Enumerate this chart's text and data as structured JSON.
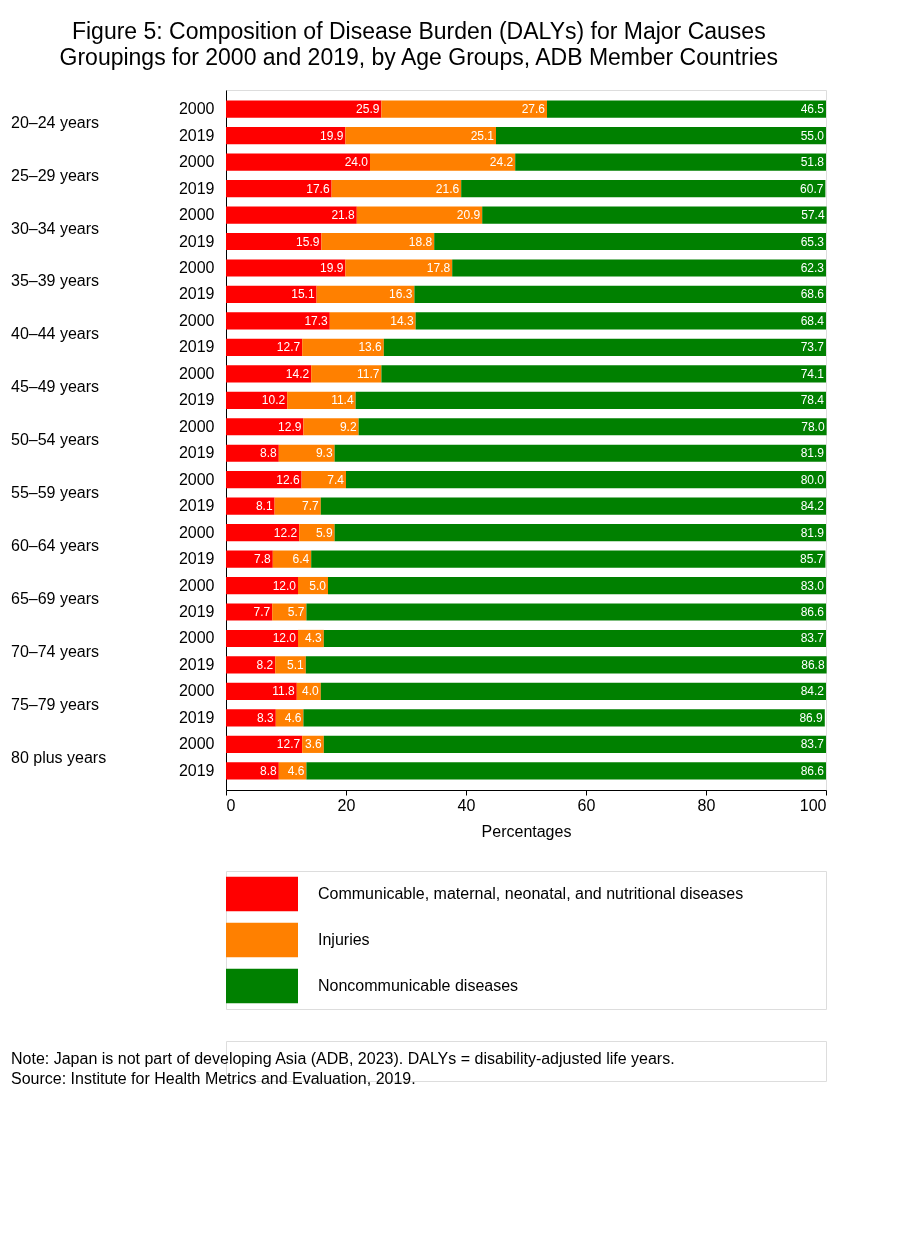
{
  "chart_data": {
    "type": "bar",
    "orientation": "horizontal",
    "stacked": true,
    "title": "Figure 5: Composition of Disease Burden (DALYs) for Major Causes Groupings for 2000 and 2019, by Age Groups, ADB Member Countries",
    "xlabel": "Percentages",
    "categories": [
      "2000",
      "2019",
      "2000",
      "2019",
      "2000",
      "2019",
      "2000",
      "2019",
      "2000",
      "2019",
      "2000",
      "2019",
      "2000",
      "2019",
      "2000",
      "2019",
      "2000",
      "2019",
      "2000",
      "2019",
      "2000",
      "2019",
      "2000",
      "2019",
      "2000",
      "2019"
    ],
    "series": [
      {
        "name": "Communicable, maternal, neonatal, and nutritional diseases",
        "color": "#ff0000",
        "values": [
          25.9,
          19.9,
          24.0,
          17.6,
          21.8,
          15.9,
          19.9,
          15.1,
          17.3,
          12.7,
          14.2,
          10.2,
          12.9,
          8.8,
          12.6,
          8.1,
          12.2,
          7.8,
          12.0,
          7.7,
          12.0,
          8.2,
          11.8,
          8.3,
          12.7,
          8.8
        ],
        "value_labels": [
          "25.9",
          "19.9",
          "24.0",
          "17.6",
          "21.8",
          "15.9",
          "19.9",
          "15.1",
          "17.3",
          "12.7",
          "14.2",
          "10.2",
          "12.9",
          "8.8",
          "12.6",
          "8.1",
          "12.2",
          "7.8",
          "12.0",
          "7.7",
          "12.0",
          "8.2",
          "11.8",
          "8.3",
          "12.7",
          "8.8"
        ]
      },
      {
        "name": "Injuries",
        "color": "#ff8000",
        "values": [
          27.6,
          25.1,
          24.2,
          21.6,
          20.9,
          18.8,
          17.8,
          16.3,
          14.3,
          13.6,
          11.7,
          11.4,
          9.2,
          9.3,
          7.4,
          7.7,
          5.9,
          6.4,
          5.0,
          5.7,
          4.3,
          5.1,
          4.0,
          4.6,
          3.6,
          4.6
        ],
        "value_labels": [
          "27.6",
          "25.1",
          "24.2",
          "21.6",
          "20.9",
          "18.8",
          "17.8",
          "16.3",
          "14.3",
          "13.6",
          "11.7",
          "11.4",
          "9.2",
          "9.3",
          "7.4",
          "7.7",
          "5.9",
          "6.4",
          "5.0",
          "5.7",
          "4.3",
          "5.1",
          "4.0",
          "4.6",
          "3.6",
          "4.6"
        ]
      },
      {
        "name": "Noncommunicable diseases",
        "color": "#008000",
        "values": [
          46.5,
          55.0,
          51.8,
          60.7,
          57.4,
          65.3,
          62.3,
          68.6,
          68.4,
          73.7,
          74.1,
          78.4,
          78.0,
          81.9,
          80.0,
          84.2,
          81.9,
          85.7,
          83.0,
          86.6,
          83.7,
          86.8,
          84.2,
          86.9,
          83.7,
          86.6
        ],
        "value_labels": [
          "46.5",
          "55.0",
          "51.8",
          "60.7",
          "57.4",
          "65.3",
          "62.3",
          "68.6",
          "68.4",
          "73.7",
          "74.1",
          "78.4",
          "78.0",
          "81.9",
          "80.0",
          "84.2",
          "81.9",
          "85.7",
          "83.0",
          "86.6",
          "83.7",
          "86.8",
          "84.2",
          "86.9",
          "83.7",
          "86.6"
        ]
      }
    ],
    "xlim": [
      0,
      100
    ],
    "xticks": [
      0,
      20,
      40,
      60,
      80,
      100
    ],
    "grid": false,
    "legend": "bottom",
    "annotations": [
      "20–24 years",
      "25–29 years",
      "30–34 years",
      "35–39 years",
      "40–44 years",
      "45–49 years",
      "50–54 years",
      "55–59 years",
      "60–64 years",
      "65–69 years",
      "70–74 years",
      "75–79 years",
      "80 plus years",
      "Note: Japan is not part of developing Asia (ADB, 2023). DALYs = disability-adjusted life years.",
      "Source: Institute for Health Metrics and Evaluation, 2019."
    ]
  }
}
